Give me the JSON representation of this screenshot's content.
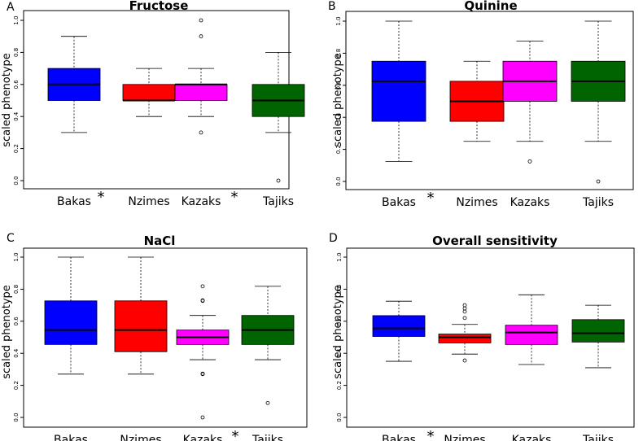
{
  "chart_data": [
    {
      "panel": "A",
      "type": "boxplot",
      "title": "Fructose",
      "xlabel": "",
      "ylabel": "scaled phenotype",
      "ylim": [
        0,
        1
      ],
      "y_ticks": [
        "0.0",
        "0.2",
        "0.4",
        "0.6",
        "0.8",
        "1.0"
      ],
      "categories": [
        "Bakas",
        "Nzimes",
        "Kazaks",
        "Tajiks"
      ],
      "significance_markers": [
        {
          "between": [
            "Bakas",
            "Nzimes"
          ],
          "symbol": "*"
        },
        {
          "between": [
            "Kazaks",
            "Tajiks"
          ],
          "symbol": "*"
        }
      ],
      "boxes": [
        {
          "category": "Bakas",
          "color": "#0000ff",
          "whisker_low": 0.3,
          "q1": 0.5,
          "median": 0.6,
          "q3": 0.7,
          "whisker_high": 0.9,
          "outliers": []
        },
        {
          "category": "Nzimes",
          "color": "#ff0000",
          "whisker_low": 0.4,
          "q1": 0.5,
          "median": 0.5,
          "q3": 0.6,
          "whisker_high": 0.7,
          "outliers": []
        },
        {
          "category": "Kazaks",
          "color": "#ff00ff",
          "whisker_low": 0.4,
          "q1": 0.5,
          "median": 0.6,
          "q3": 0.6,
          "whisker_high": 0.7,
          "outliers": [
            0.3,
            0.9,
            1.0
          ]
        },
        {
          "category": "Tajiks",
          "color": "#006400",
          "whisker_low": 0.3,
          "q1": 0.4,
          "median": 0.5,
          "q3": 0.6,
          "whisker_high": 0.8,
          "outliers": [
            0.0
          ]
        }
      ]
    },
    {
      "panel": "B",
      "type": "boxplot",
      "title": "Quinine",
      "xlabel": "",
      "ylabel": "scaled phenotype",
      "ylim": [
        0,
        1
      ],
      "y_ticks": [
        "0.0",
        "0.2",
        "0.4",
        "0.6",
        "0.8",
        "1.0"
      ],
      "categories": [
        "Bakas",
        "Nzimes",
        "Kazaks",
        "Tajiks"
      ],
      "significance_markers": [
        {
          "between": [
            "Bakas",
            "Nzimes"
          ],
          "symbol": "*"
        }
      ],
      "boxes": [
        {
          "category": "Bakas",
          "color": "#0000ff",
          "whisker_low": 0.125,
          "q1": 0.375,
          "median": 0.625,
          "q3": 0.75,
          "whisker_high": 1.0,
          "outliers": []
        },
        {
          "category": "Nzimes",
          "color": "#ff0000",
          "whisker_low": 0.25,
          "q1": 0.375,
          "median": 0.5,
          "q3": 0.625,
          "whisker_high": 0.75,
          "outliers": []
        },
        {
          "category": "Kazaks",
          "color": "#ff00ff",
          "whisker_low": 0.25,
          "q1": 0.5,
          "median": 0.625,
          "q3": 0.75,
          "whisker_high": 0.875,
          "outliers": [
            0.125
          ]
        },
        {
          "category": "Tajiks",
          "color": "#006400",
          "whisker_low": 0.25,
          "q1": 0.5,
          "median": 0.625,
          "q3": 0.75,
          "whisker_high": 1.0,
          "outliers": [
            0.0
          ]
        }
      ]
    },
    {
      "panel": "C",
      "type": "boxplot",
      "title": "NaCl",
      "xlabel": "",
      "ylabel": "scaled phenotype",
      "ylim": [
        0,
        1
      ],
      "y_ticks": [
        "0.0",
        "0.2",
        "0.4",
        "0.6",
        "0.8",
        "1.0"
      ],
      "categories": [
        "Bakas",
        "Nzimes",
        "Kazaks",
        "Tajiks"
      ],
      "significance_markers": [
        {
          "between": [
            "Kazaks",
            "Tajiks"
          ],
          "symbol": "*"
        }
      ],
      "boxes": [
        {
          "category": "Bakas",
          "color": "#0000ff",
          "whisker_low": 0.27,
          "q1": 0.455,
          "median": 0.545,
          "q3": 0.727,
          "whisker_high": 1.0,
          "outliers": []
        },
        {
          "category": "Nzimes",
          "color": "#ff0000",
          "whisker_low": 0.27,
          "q1": 0.41,
          "median": 0.545,
          "q3": 0.727,
          "whisker_high": 1.0,
          "outliers": []
        },
        {
          "category": "Kazaks",
          "color": "#ff00ff",
          "whisker_low": 0.36,
          "q1": 0.455,
          "median": 0.5,
          "q3": 0.545,
          "whisker_high": 0.636,
          "outliers": [
            0.0,
            0.27,
            0.273,
            0.727,
            0.73,
            0.818
          ]
        },
        {
          "category": "Tajiks",
          "color": "#006400",
          "whisker_low": 0.36,
          "q1": 0.455,
          "median": 0.545,
          "q3": 0.636,
          "whisker_high": 0.818,
          "outliers": [
            0.09
          ]
        }
      ]
    },
    {
      "panel": "D",
      "type": "boxplot",
      "title": "Overall sensitivity",
      "xlabel": "",
      "ylabel": "scaled phenotype",
      "ylim": [
        0,
        1
      ],
      "y_ticks": [
        "0.0",
        "0.2",
        "0.4",
        "0.6",
        "0.8",
        "1.0"
      ],
      "categories": [
        "Bakas",
        "Nzimes",
        "Kazaks",
        "Tajiks"
      ],
      "significance_markers": [
        {
          "between": [
            "Bakas",
            "Nzimes"
          ],
          "symbol": "*"
        }
      ],
      "boxes": [
        {
          "category": "Bakas",
          "color": "#0000ff",
          "whisker_low": 0.35,
          "q1": 0.505,
          "median": 0.555,
          "q3": 0.635,
          "whisker_high": 0.725,
          "outliers": []
        },
        {
          "category": "Nzimes",
          "color": "#ff0000",
          "whisker_low": 0.395,
          "q1": 0.465,
          "median": 0.5,
          "q3": 0.52,
          "whisker_high": 0.58,
          "outliers": [
            0.355,
            0.62,
            0.66,
            0.68,
            0.7
          ]
        },
        {
          "category": "Kazaks",
          "color": "#ff00ff",
          "whisker_low": 0.33,
          "q1": 0.455,
          "median": 0.53,
          "q3": 0.575,
          "whisker_high": 0.765,
          "outliers": []
        },
        {
          "category": "Tajiks",
          "color": "#006400",
          "whisker_low": 0.31,
          "q1": 0.47,
          "median": 0.525,
          "q3": 0.61,
          "whisker_high": 0.7,
          "outliers": []
        }
      ]
    }
  ]
}
